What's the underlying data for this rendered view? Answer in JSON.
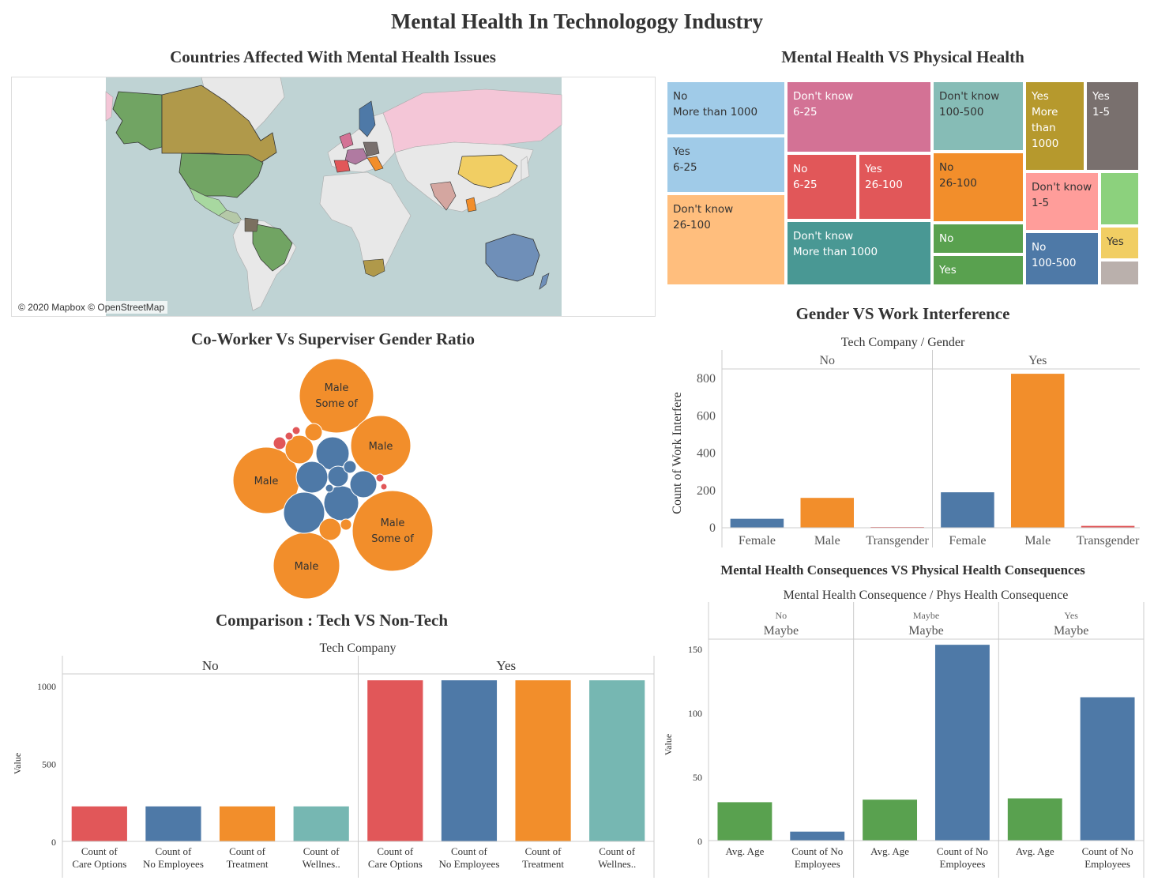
{
  "dashboard": {
    "title": "Mental Health In Technologogy Industry"
  },
  "colors": {
    "blue": "#4e79a7",
    "orange": "#f28e2b",
    "red": "#e15759",
    "teal": "#76b7b2",
    "green": "#59a14f"
  },
  "map": {
    "title": "Countries Affected With Mental Health Issues",
    "attribution": "© 2020 Mapbox © OpenStreetMap"
  },
  "treemap": {
    "title": "Mental Health VS Physical Health",
    "cells": [
      {
        "l1": "No",
        "l2": "More than 1000",
        "color": "#a0cbe8",
        "text": "#333333"
      },
      {
        "l1": "Yes",
        "l2": "6-25",
        "color": "#a0cbe8",
        "text": "#333333"
      },
      {
        "l1": "Don't know",
        "l2": "26-100",
        "color": "#ffbe7d",
        "text": "#333333"
      },
      {
        "l1": "Don't know",
        "l2": "6-25",
        "color": "#d37295",
        "text": "#ffffff"
      },
      {
        "l1": "No",
        "l2": "6-25",
        "color": "#e15759",
        "text": "#ffffff"
      },
      {
        "l1": "Yes",
        "l2": "26-100",
        "color": "#e15759",
        "text": "#ffffff"
      },
      {
        "l1": "Don't know",
        "l2": "More than 1000",
        "color": "#499894",
        "text": "#ffffff"
      },
      {
        "l1": "Don't know",
        "l2": "100-500",
        "color": "#86bcb6",
        "text": "#333333"
      },
      {
        "l1": "No",
        "l2": "26-100",
        "color": "#f28e2b",
        "text": "#333333"
      },
      {
        "l1": "No",
        "l2": "",
        "color": "#59a14f",
        "text": "#ffffff"
      },
      {
        "l1": "Yes",
        "l2": "",
        "color": "#59a14f",
        "text": "#ffffff"
      },
      {
        "l1": "Yes",
        "l2": "More than 1000",
        "color": "#b6992d",
        "text": "#ffffff"
      },
      {
        "l1": "Yes",
        "l2": "1-5",
        "color": "#79706e",
        "text": "#ffffff"
      },
      {
        "l1": "Don't know",
        "l2": "1-5",
        "color": "#ff9d9a",
        "text": "#333333"
      },
      {
        "l1": "No",
        "l2": "100-500",
        "color": "#4e79a7",
        "text": "#ffffff"
      },
      {
        "l1": "",
        "l2": "",
        "color": "#8cd17d",
        "text": "#333333"
      },
      {
        "l1": "Yes",
        "l2": "",
        "color": "#f1ce63",
        "text": "#333333"
      },
      {
        "l1": "",
        "l2": "",
        "color": "#bab0ac",
        "text": "#333333"
      }
    ]
  },
  "bubbles": {
    "title": "Co-Worker Vs Superviser Gender Ratio",
    "labels": [
      {
        "l1": "Male",
        "l2": "Some of"
      },
      {
        "l1": "Male",
        "l2": ""
      },
      {
        "l1": "Male",
        "l2": ""
      },
      {
        "l1": "Male",
        "l2": "Some of"
      },
      {
        "l1": "Male",
        "l2": ""
      }
    ]
  },
  "chart_data": [
    {
      "id": "gender_work",
      "type": "bar",
      "title": "Gender VS Work Interference",
      "header": "Tech Company  /  Gender",
      "ylabel": "Count of Work Interfere",
      "ylim": [
        0,
        800
      ],
      "yticks": [
        0,
        200,
        400,
        600,
        800
      ],
      "panes": [
        {
          "label": "No",
          "categories": [
            "Female",
            "Male",
            "Transgender"
          ],
          "values": [
            48,
            160,
            4
          ]
        },
        {
          "label": "Yes",
          "categories": [
            "Female",
            "Male",
            "Transgender"
          ],
          "values": [
            190,
            825,
            10
          ]
        }
      ]
    },
    {
      "id": "tech_compare",
      "type": "bar",
      "title": "Comparison : Tech VS Non-Tech",
      "header": "Tech Company",
      "ylabel": "Value",
      "ylim": [
        0,
        1000
      ],
      "yticks": [
        0,
        500,
        1000
      ],
      "panes": [
        {
          "label": "No",
          "categories": [
            "Count of Care Options",
            "Count of No Employees",
            "Count of Treatment",
            "Count of Wellnes.."
          ],
          "values": [
            225,
            225,
            225,
            225
          ]
        },
        {
          "label": "Yes",
          "categories": [
            "Count of Care Options",
            "Count of No Employees",
            "Count of Treatment",
            "Count of Wellnes.."
          ],
          "values": [
            1035,
            1035,
            1035,
            1035
          ]
        }
      ]
    },
    {
      "id": "consequences",
      "type": "bar",
      "title": "Mental Health Consequences VS Physical Health Consequences",
      "header": "Mental Health Consequence  /  Phys Health Consequence",
      "ylabel": "Value",
      "ylim": [
        0,
        150
      ],
      "yticks": [
        0,
        50,
        100,
        150
      ],
      "panes": [
        {
          "label": "No",
          "sublabel": "Maybe",
          "categories": [
            "Avg. Age",
            "Count of No Employees"
          ],
          "values": [
            30,
            7
          ]
        },
        {
          "label": "Maybe",
          "sublabel": "Maybe",
          "categories": [
            "Avg. Age",
            "Count of No Employees"
          ],
          "values": [
            32,
            153
          ]
        },
        {
          "label": "Yes",
          "sublabel": "Maybe",
          "categories": [
            "Avg. Age",
            "Count of No Employees"
          ],
          "values": [
            33,
            112
          ]
        }
      ]
    }
  ]
}
